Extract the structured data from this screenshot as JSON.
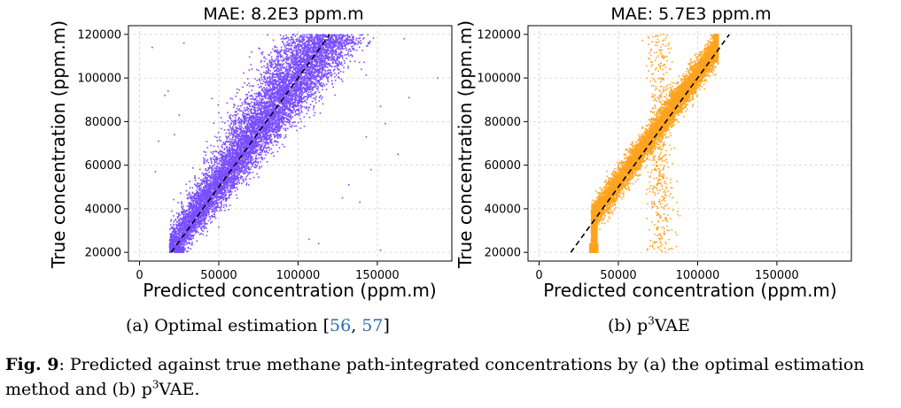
{
  "panels": [
    {
      "title": "MAE: 8.2E3 ppm.m",
      "caption_prefix": "(a) Optimal estimation [",
      "caption_ref1": "56",
      "caption_sep": ", ",
      "caption_ref2": "57",
      "caption_suffix": "]",
      "color": "#7a4dff"
    },
    {
      "title": "MAE: 5.7E3 ppm.m",
      "caption_prefix": "(b) p",
      "caption_sup": "3",
      "caption_suffix": "VAE",
      "color": "#ffa31f"
    }
  ],
  "figure_caption": {
    "label": "Fig. 9",
    "text_1": ": Predicted against true methane path-integrated concentrations by (a) the optimal estimation method and (b) p",
    "sup": "3",
    "text_2": "VAE."
  },
  "chart_data": [
    {
      "type": "scatter",
      "title": "MAE: 8.2E3 ppm.m",
      "xlabel": "Predicted concentration (ppm.m)",
      "ylabel": "True concentration (ppm.m)",
      "xlim": [
        -7000,
        197000
      ],
      "ylim": [
        16000,
        124000
      ],
      "xticks": [
        0,
        50000,
        100000,
        150000
      ],
      "yticks": [
        20000,
        40000,
        60000,
        80000,
        100000,
        120000
      ],
      "grid": true,
      "reference_line": {
        "style": "dashed",
        "color": "#000000",
        "x": [
          20000,
          120000
        ],
        "y": [
          20000,
          120000
        ]
      },
      "point_color": "#7a4dff",
      "distribution": {
        "n_points": 9000,
        "y_range": [
          20000,
          120000
        ],
        "x_center": "follows y=x line, biased slightly low at high values",
        "x_spread_std": 9000,
        "y_capped_at": 120000
      },
      "outliers": [
        [
          8000,
          114000
        ],
        [
          28000,
          116000
        ],
        [
          18000,
          94000
        ],
        [
          16000,
          92000
        ],
        [
          22000,
          74000
        ],
        [
          12000,
          71000
        ],
        [
          10000,
          57000
        ],
        [
          25000,
          83000
        ],
        [
          167000,
          118000
        ],
        [
          188000,
          100000
        ],
        [
          152000,
          87000
        ],
        [
          163000,
          65000
        ],
        [
          143000,
          73000
        ],
        [
          146000,
          58000
        ],
        [
          132000,
          51000
        ],
        [
          128000,
          45000
        ],
        [
          139000,
          43000
        ],
        [
          107000,
          26000
        ],
        [
          152000,
          21000
        ],
        [
          113000,
          24000
        ],
        [
          155000,
          79000
        ],
        [
          170000,
          91000
        ],
        [
          140000,
          104000
        ],
        [
          128000,
          118000
        ]
      ]
    },
    {
      "type": "scatter",
      "title": "MAE: 5.7E3 ppm.m",
      "xlabel": "Predicted concentration (ppm.m)",
      "ylabel": "",
      "xlim": [
        -7000,
        197000
      ],
      "ylim": [
        16000,
        124000
      ],
      "xticks": [
        0,
        50000,
        100000,
        150000
      ],
      "yticks": [
        20000,
        40000,
        60000,
        80000,
        100000,
        120000
      ],
      "grid": true,
      "reference_line": {
        "style": "dashed",
        "color": "#000000",
        "x": [
          20000,
          120000
        ],
        "y": [
          20000,
          120000
        ]
      },
      "point_color": "#ffa31f",
      "distribution": {
        "n_points": 9000,
        "y_range": [
          20000,
          120000
        ],
        "x_center": "tight band along y=x, clipped at x≈34000 (low end) and x≈112000 (high end)",
        "x_spread_std": 3500,
        "side_cloud": "vertical scatter of points near x≈72000-80000 across all y"
      }
    }
  ]
}
